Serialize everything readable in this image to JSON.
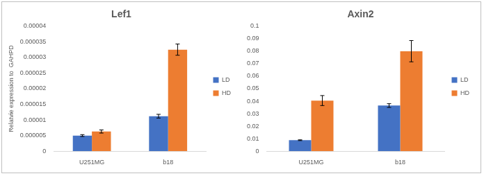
{
  "chart_data": [
    {
      "type": "bar",
      "title": "Lef1",
      "y_label": "Relatvie expression to  GAHPD",
      "categories": [
        "U251MG",
        "b18"
      ],
      "series": [
        {
          "name": "LD",
          "color": "#4472c4",
          "values": [
            5e-06,
            1.12e-05
          ],
          "errors": [
            3e-07,
            6e-07
          ]
        },
        {
          "name": "HD",
          "color": "#ed7d31",
          "values": [
            6.3e-06,
            3.25e-05
          ],
          "errors": [
            5e-07,
            1.8e-06
          ]
        }
      ],
      "ylim": [
        0,
        4e-05
      ],
      "yticks": [
        0,
        {
          "value": 5e-06,
          "label": "0.000005"
        },
        {
          "value": 1e-05,
          "label": "0.00001"
        },
        {
          "value": 1.5e-05,
          "label": "0.000015"
        },
        {
          "value": 2e-05,
          "label": "0.00002"
        },
        {
          "value": 2.5e-05,
          "label": "0.000025"
        },
        {
          "value": 3e-05,
          "label": "0.00003"
        },
        {
          "value": 3.5e-05,
          "label": "0.000035"
        },
        {
          "value": 4e-05,
          "label": "0.00004"
        }
      ],
      "grid": false,
      "legend": "right"
    },
    {
      "type": "bar",
      "title": "Axin2",
      "categories": [
        "U251MG",
        "b18"
      ],
      "series": [
        {
          "name": "LD",
          "color": "#4472c4",
          "values": [
            0.0088,
            0.0365
          ],
          "errors": [
            0.0003,
            0.0015
          ]
        },
        {
          "name": "HD",
          "color": "#ed7d31",
          "values": [
            0.0405,
            0.08
          ],
          "errors": [
            0.004,
            0.0085
          ]
        }
      ],
      "ylim": [
        0,
        0.1
      ],
      "yticks": [
        0,
        0.01,
        0.02,
        0.03,
        0.04,
        0.05,
        0.06,
        0.07,
        0.08,
        0.09,
        0.1
      ],
      "grid": false,
      "legend": "right"
    }
  ]
}
